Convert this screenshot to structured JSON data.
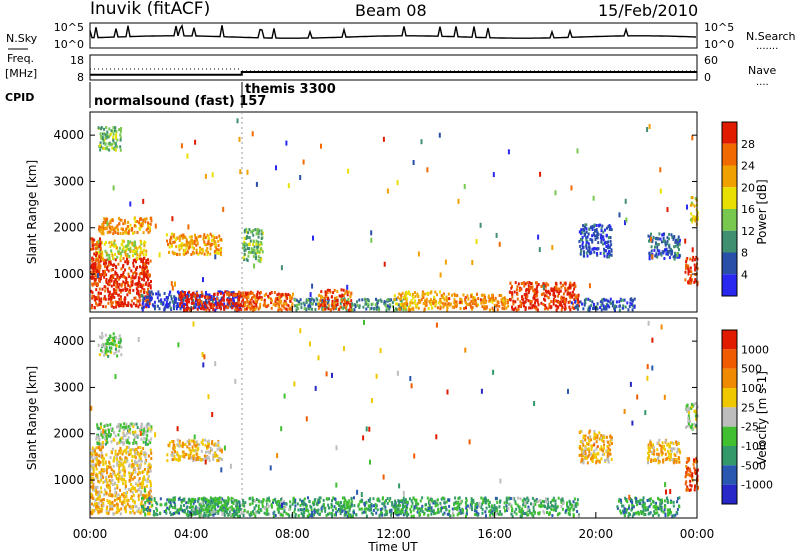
{
  "header": {
    "station": "Inuvik (fitACF)",
    "beam": "Beam 08",
    "date": "15/Feb/2010"
  },
  "nsky": {
    "label": "N.Sky",
    "left_ticks": [
      "10^5",
      "10^0"
    ],
    "right_ticks": [
      "10^5",
      "10^0"
    ],
    "right_label": "N.Search",
    "right_legend": "......."
  },
  "freq": {
    "label_line1": "Freq.",
    "label_line2": "[MHz]",
    "left_ticks": [
      "18",
      "8"
    ],
    "right_ticks": [
      "60",
      "0"
    ],
    "right_label": "Nave",
    "right_legend": "....",
    "ylim": [
      8,
      18
    ],
    "steps": [
      [
        0.0,
        10.1
      ],
      [
        6.0,
        10.1
      ],
      [
        6.0,
        11.2
      ],
      [
        24.0,
        11.2
      ]
    ]
  },
  "cpid": {
    "label": "CPID",
    "modes": [
      {
        "name": "normalsound (fast) 157",
        "start_hour": 0
      },
      {
        "name": "themis 3300",
        "start_hour": 6
      }
    ]
  },
  "chart_data": [
    {
      "type": "heatmap",
      "title": "",
      "panel": "power",
      "ylabel": "Slant Range [km]",
      "ylim": [
        180,
        4500
      ],
      "y_ticks": [
        1000,
        2000,
        3000,
        4000
      ],
      "xlim": [
        0,
        24
      ],
      "colorbar_label": "Power [dB]",
      "colorbar_ticks": [
        "28",
        "24",
        "20",
        "16",
        "12",
        "8",
        "4"
      ],
      "colors": [
        "#2828f0",
        "#2a4fa8",
        "#3f8f70",
        "#78c850",
        "#e8e000",
        "#f0a000",
        "#f06a00",
        "#e01b00"
      ],
      "scatter_regions": [
        {
          "t": [
            0.0,
            2.4
          ],
          "r": [
            300,
            1400
          ],
          "level": 0.93
        },
        {
          "t": [
            0.2,
            2.2
          ],
          "r": [
            1350,
            1750
          ],
          "level": 0.55
        },
        {
          "t": [
            0.3,
            2.4
          ],
          "r": [
            1900,
            2250
          ],
          "level": 0.72
        },
        {
          "t": [
            0.0,
            0.4
          ],
          "r": [
            800,
            1800
          ],
          "level": 0.9
        },
        {
          "t": [
            2.0,
            5.9
          ],
          "r": [
            250,
            650
          ],
          "level": 0.15
        },
        {
          "t": [
            3.5,
            6.6
          ],
          "r": [
            250,
            650
          ],
          "level": 0.95
        },
        {
          "t": [
            3.0,
            5.2
          ],
          "r": [
            1450,
            1900
          ],
          "level": 0.7
        },
        {
          "t": [
            6.0,
            8.0
          ],
          "r": [
            250,
            650
          ],
          "level": 0.8
        },
        {
          "t": [
            6.0,
            6.8
          ],
          "r": [
            1300,
            2000
          ],
          "level": 0.4
        },
        {
          "t": [
            8.0,
            12.5
          ],
          "r": [
            250,
            500
          ],
          "level": 0.3
        },
        {
          "t": [
            9.0,
            10.3
          ],
          "r": [
            250,
            700
          ],
          "level": 0.85
        },
        {
          "t": [
            12.0,
            14.0
          ],
          "r": [
            250,
            650
          ],
          "level": 0.65
        },
        {
          "t": [
            14.0,
            16.5
          ],
          "r": [
            250,
            600
          ],
          "level": 0.75
        },
        {
          "t": [
            16.5,
            19.3
          ],
          "r": [
            250,
            850
          ],
          "level": 0.9
        },
        {
          "t": [
            19.0,
            21.5
          ],
          "r": [
            250,
            500
          ],
          "level": 0.2
        },
        {
          "t": [
            19.3,
            20.6
          ],
          "r": [
            1400,
            2100
          ],
          "level": 0.15
        },
        {
          "t": [
            22.0,
            23.3
          ],
          "r": [
            1350,
            1900
          ],
          "level": 0.2
        },
        {
          "t": [
            23.5,
            24.0
          ],
          "r": [
            800,
            1400
          ],
          "level": 0.9
        },
        {
          "t": [
            23.7,
            24.0
          ],
          "r": [
            2100,
            2700
          ],
          "level": 0.6
        },
        {
          "t": [
            0.3,
            1.2
          ],
          "r": [
            3700,
            4200
          ],
          "level": 0.4
        }
      ]
    },
    {
      "type": "heatmap",
      "title": "",
      "panel": "velocity",
      "ylabel": "Slant Range [km]",
      "ylim": [
        180,
        4500
      ],
      "y_ticks": [
        1000,
        2000,
        3000,
        4000
      ],
      "xlim": [
        0,
        24
      ],
      "xlabel": "Time UT",
      "x_ticks": [
        "00:00",
        "04:00",
        "08:00",
        "12:00",
        "16:00",
        "20:00",
        "00:00"
      ],
      "colorbar_label": "Velocity [m s-1]",
      "colorbar_ticks": [
        "1000",
        "500",
        "100",
        "25",
        "-25",
        "-100",
        "-500",
        "-1000"
      ],
      "colors": [
        "#2828c8",
        "#2a58b0",
        "#33996a",
        "#40c030",
        "#bdbdbd",
        "#f0c800",
        "#f08a00",
        "#f05a00",
        "#e01b00"
      ],
      "scatter_regions": [
        {
          "t": [
            0.0,
            2.4
          ],
          "r": [
            300,
            1750
          ],
          "level": 0.62
        },
        {
          "t": [
            0.2,
            2.4
          ],
          "r": [
            1800,
            2250
          ],
          "level": 0.45
        },
        {
          "t": [
            2.0,
            5.9
          ],
          "r": [
            250,
            650
          ],
          "level": 0.3
        },
        {
          "t": [
            3.0,
            5.2
          ],
          "r": [
            1450,
            1900
          ],
          "level": 0.62
        },
        {
          "t": [
            4.0,
            8.0
          ],
          "r": [
            250,
            650
          ],
          "level": 0.35
        },
        {
          "t": [
            8.0,
            12.5
          ],
          "r": [
            250,
            650
          ],
          "level": 0.3
        },
        {
          "t": [
            12.0,
            16.5
          ],
          "r": [
            250,
            650
          ],
          "level": 0.32
        },
        {
          "t": [
            16.5,
            19.3
          ],
          "r": [
            250,
            650
          ],
          "level": 0.35
        },
        {
          "t": [
            19.3,
            20.6
          ],
          "r": [
            1400,
            2100
          ],
          "level": 0.65
        },
        {
          "t": [
            20.8,
            23.3
          ],
          "r": [
            250,
            650
          ],
          "level": 0.3
        },
        {
          "t": [
            22.0,
            23.3
          ],
          "r": [
            1400,
            1900
          ],
          "level": 0.63
        },
        {
          "t": [
            23.5,
            24.0
          ],
          "r": [
            800,
            1500
          ],
          "level": 0.85
        },
        {
          "t": [
            23.5,
            24.0
          ],
          "r": [
            2100,
            2700
          ],
          "level": 0.45
        },
        {
          "t": [
            0.3,
            1.2
          ],
          "r": [
            3700,
            4200
          ],
          "level": 0.45
        }
      ]
    }
  ]
}
